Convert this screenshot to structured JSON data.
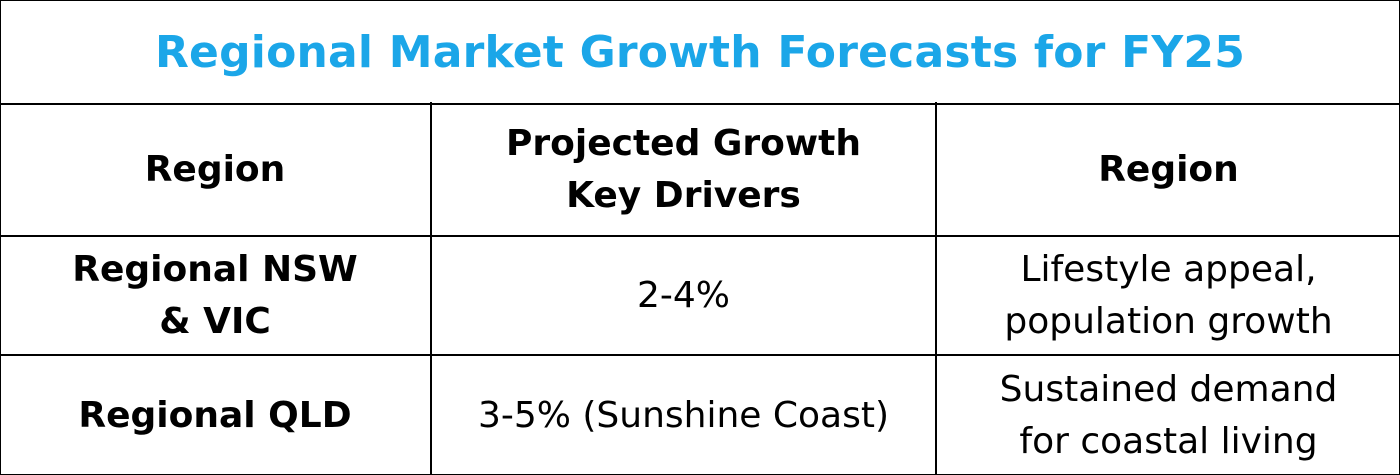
{
  "table": {
    "title": "Regional Market Growth Forecasts for FY25",
    "title_color": "#1ba6e8",
    "headers": {
      "col1": "Region",
      "col2_line1": "Projected Growth",
      "col2_line2": "Key Drivers",
      "col3": "Region"
    },
    "rows": [
      {
        "region_line1": "Regional NSW",
        "region_line2": "& VIC",
        "growth": "2-4%",
        "drivers_line1": "Lifestyle appeal,",
        "drivers_line2": "population growth"
      },
      {
        "region": "Regional QLD",
        "growth": "3-5% (Sunshine Coast)",
        "drivers_line1": "Sustained demand",
        "drivers_line2": "for coastal living"
      }
    ]
  }
}
